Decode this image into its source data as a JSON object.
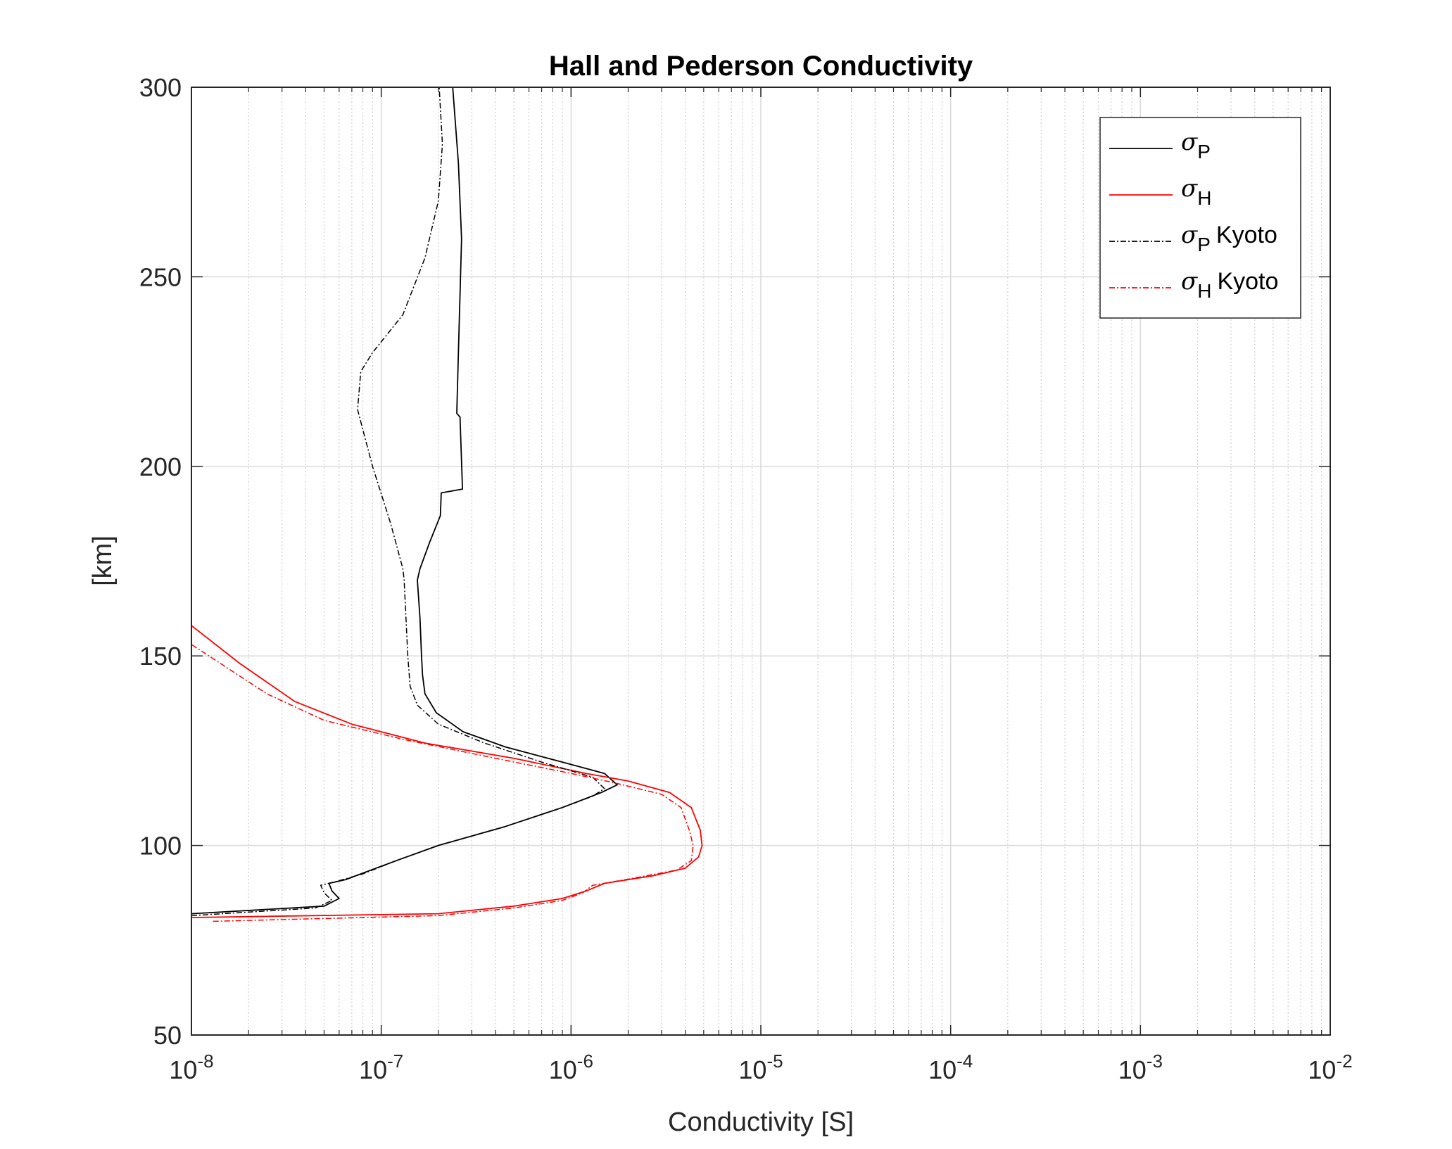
{
  "chart_data": {
    "type": "line",
    "title": "Hall and Pederson Conductivity",
    "xlabel": "Conductivity [S]",
    "ylabel": "[km]",
    "xscale": "log",
    "xlim": [
      1e-08,
      0.01
    ],
    "ylim": [
      50,
      300
    ],
    "x_ticks": [
      {
        "base": "10",
        "exp": "-8"
      },
      {
        "base": "10",
        "exp": "-7"
      },
      {
        "base": "10",
        "exp": "-6"
      },
      {
        "base": "10",
        "exp": "-5"
      },
      {
        "base": "10",
        "exp": "-4"
      },
      {
        "base": "10",
        "exp": "-3"
      },
      {
        "base": "10",
        "exp": "-2"
      }
    ],
    "y_ticks": [
      "50",
      "100",
      "150",
      "200",
      "250",
      "300"
    ],
    "grid": true,
    "legend_position": "top-right",
    "series": [
      {
        "name": "σP",
        "symbol": "σ",
        "subscript": "P",
        "suffix": "",
        "color": "#000000",
        "style": "solid",
        "points": [
          [
            1e-08,
            82
          ],
          [
            5e-08,
            84
          ],
          [
            6e-08,
            86
          ],
          [
            5.5e-08,
            88
          ],
          [
            5.3e-08,
            90
          ],
          [
            6.5e-08,
            91
          ],
          [
            8.3e-08,
            93
          ],
          [
            1.2e-07,
            96
          ],
          [
            2e-07,
            100
          ],
          [
            4.5e-07,
            105
          ],
          [
            9e-07,
            110
          ],
          [
            1.45e-06,
            114
          ],
          [
            1.75e-06,
            116
          ],
          [
            1.5e-06,
            119
          ],
          [
            9e-07,
            122
          ],
          [
            4.5e-07,
            126
          ],
          [
            2.7e-07,
            130
          ],
          [
            1.95e-07,
            135
          ],
          [
            1.7e-07,
            140
          ],
          [
            1.65e-07,
            145
          ],
          [
            1.63e-07,
            150
          ],
          [
            1.6e-07,
            160
          ],
          [
            1.55e-07,
            170
          ],
          [
            1.6e-07,
            173
          ],
          [
            1.8e-07,
            180
          ],
          [
            2.05e-07,
            187
          ],
          [
            2.07e-07,
            193
          ],
          [
            2.68e-07,
            194
          ],
          [
            2.6e-07,
            213
          ],
          [
            2.5e-07,
            214
          ],
          [
            2.55e-07,
            230
          ],
          [
            2.65e-07,
            260
          ],
          [
            2.55e-07,
            280
          ],
          [
            2.38e-07,
            300
          ]
        ]
      },
      {
        "name": "σH",
        "symbol": "σ",
        "subscript": "H",
        "suffix": "",
        "color": "#ff0000",
        "style": "solid",
        "points": [
          [
            1e-08,
            81
          ],
          [
            2e-07,
            82
          ],
          [
            5e-07,
            84
          ],
          [
            9e-07,
            86
          ],
          [
            1.2e-06,
            88
          ],
          [
            1.5e-06,
            90
          ],
          [
            2.7e-06,
            92
          ],
          [
            4e-06,
            94
          ],
          [
            4.7e-06,
            97
          ],
          [
            4.9e-06,
            100
          ],
          [
            4.8e-06,
            104
          ],
          [
            4.3e-06,
            110
          ],
          [
            3.3e-06,
            114
          ],
          [
            2e-06,
            117
          ],
          [
            1.2e-06,
            119
          ],
          [
            5e-07,
            123
          ],
          [
            1.7e-07,
            127
          ],
          [
            7e-08,
            132
          ],
          [
            3.5e-08,
            138
          ],
          [
            1.8e-08,
            148
          ],
          [
            1e-08,
            158
          ]
        ]
      },
      {
        "name": "σP Kyoto",
        "symbol": "σ",
        "subscript": "P",
        "suffix": "Kyoto",
        "color": "#000000",
        "style": "dashdot",
        "points": [
          [
            1e-08,
            81.5
          ],
          [
            4.5e-08,
            83.5
          ],
          [
            5.5e-08,
            85.5
          ],
          [
            5e-08,
            87.5
          ],
          [
            4.8e-08,
            89.5
          ],
          [
            5.8e-08,
            90.5
          ],
          [
            8e-08,
            92.5
          ],
          [
            1.2e-07,
            96
          ],
          [
            2e-07,
            100
          ],
          [
            4.5e-07,
            105
          ],
          [
            9e-07,
            110
          ],
          [
            1.3e-06,
            113
          ],
          [
            1.5e-06,
            115
          ],
          [
            1.3e-06,
            118
          ],
          [
            7e-07,
            122
          ],
          [
            3.5e-07,
            127
          ],
          [
            2e-07,
            132
          ],
          [
            1.55e-07,
            137
          ],
          [
            1.42e-07,
            142
          ],
          [
            1.38e-07,
            150
          ],
          [
            1.35e-07,
            160
          ],
          [
            1.32e-07,
            170
          ],
          [
            1.3e-07,
            173
          ],
          [
            1.12e-07,
            185
          ],
          [
            9e-08,
            200
          ],
          [
            7.5e-08,
            215
          ],
          [
            7.8e-08,
            225
          ],
          [
            9e-08,
            230
          ],
          [
            1.3e-07,
            240
          ],
          [
            1.7e-07,
            255
          ],
          [
            2e-07,
            270
          ],
          [
            2.1e-07,
            285
          ],
          [
            2.02e-07,
            300
          ]
        ]
      },
      {
        "name": "σH Kyoto",
        "symbol": "σ",
        "subscript": "H",
        "suffix": "Kyoto",
        "color": "#ff0000",
        "style": "dashdot",
        "points": [
          [
            1.3e-08,
            80
          ],
          [
            2e-07,
            81.5
          ],
          [
            5e-07,
            83.5
          ],
          [
            9e-07,
            85.5
          ],
          [
            1.15e-06,
            87.5
          ],
          [
            1.3e-06,
            89.5
          ],
          [
            2.2e-06,
            91.5
          ],
          [
            3.6e-06,
            93.5
          ],
          [
            4.3e-06,
            96
          ],
          [
            4.4e-06,
            100
          ],
          [
            4.2e-06,
            104
          ],
          [
            3.8e-06,
            110
          ],
          [
            3e-06,
            113.5
          ],
          [
            1.7e-06,
            116.5
          ],
          [
            1e-06,
            119
          ],
          [
            4e-07,
            123
          ],
          [
            1.3e-07,
            128
          ],
          [
            5e-08,
            133
          ],
          [
            2.5e-08,
            140
          ],
          [
            1e-08,
            153
          ]
        ]
      }
    ]
  }
}
